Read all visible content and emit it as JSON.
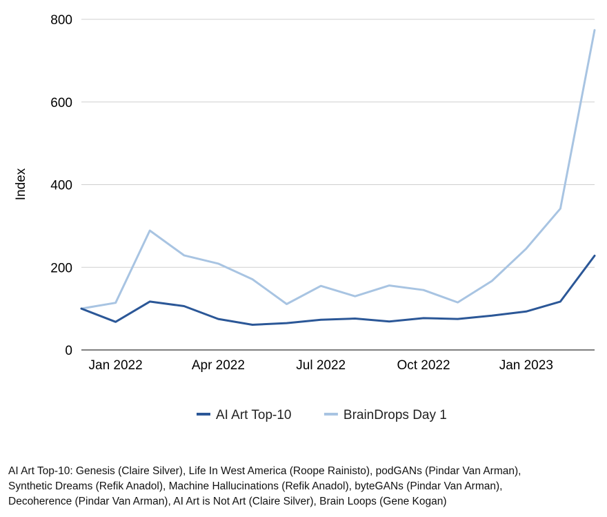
{
  "chart_data": {
    "type": "line",
    "title": "",
    "xlabel": "",
    "ylabel": "Index",
    "ylim": [
      0,
      800
    ],
    "yticks": [
      0,
      200,
      400,
      600,
      800
    ],
    "x": [
      "2021-12",
      "2022-01",
      "2022-02",
      "2022-03",
      "2022-04",
      "2022-05",
      "2022-06",
      "2022-07",
      "2022-08",
      "2022-09",
      "2022-10",
      "2022-11",
      "2022-12",
      "2023-01",
      "2023-02",
      "2023-03"
    ],
    "xtick_labels": [
      "Jan 2022",
      "Apr 2022",
      "Jul 2022",
      "Oct 2022",
      "Jan 2023"
    ],
    "xtick_positions": [
      "2022-01",
      "2022-04",
      "2022-07",
      "2022-10",
      "2023-01"
    ],
    "grid": true,
    "legend_position": "bottom",
    "series": [
      {
        "name": "AI Art Top-10",
        "color": "#2b5797",
        "values": [
          100,
          68,
          117,
          106,
          75,
          61,
          65,
          73,
          76,
          69,
          77,
          75,
          83,
          93,
          117,
          228
        ]
      },
      {
        "name": "BrainDrops Day 1",
        "color": "#a8c4e2",
        "values": [
          100,
          114,
          289,
          229,
          209,
          171,
          111,
          155,
          130,
          156,
          145,
          115,
          167,
          245,
          342,
          774
        ]
      }
    ]
  },
  "footnote": {
    "lines": [
      "AI Art Top-10: Genesis (Claire Silver), Life In West America (Roope Rainisto), podGANs (Pindar Van Arman),",
      "Synthetic Dreams (Refik Anadol), Machine Hallucinations (Refik Anadol), byteGANs (Pindar Van Arman),",
      "Decoherence (Pindar Van Arman), AI Art is Not Art (Claire Silver), Brain Loops (Gene Kogan)"
    ]
  }
}
